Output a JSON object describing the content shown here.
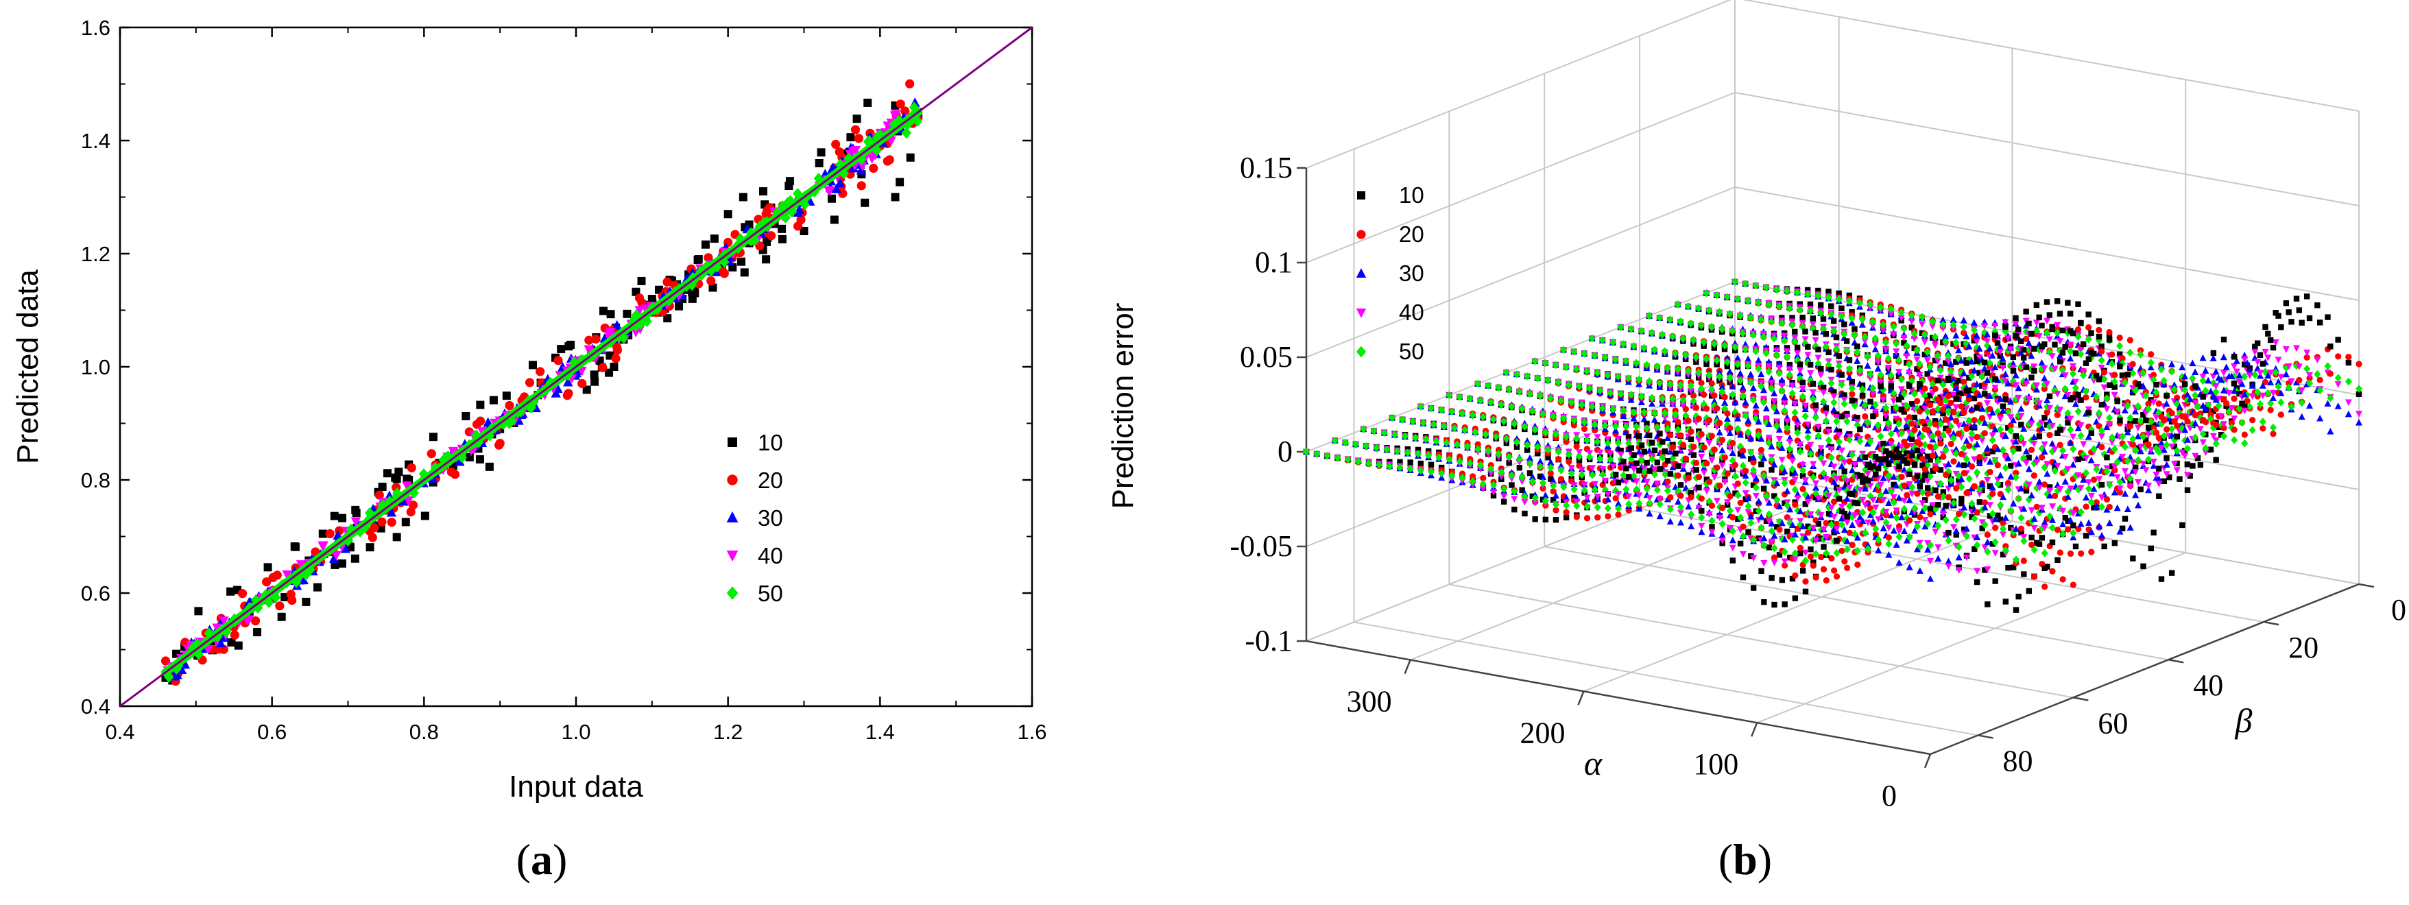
{
  "colors": {
    "s10": "#000000",
    "s20": "#ff0000",
    "s30": "#0000ff",
    "s40": "#ff00ff",
    "s50": "#00ee00",
    "diagonal": "#800080"
  },
  "panels": {
    "a": {
      "label_open": "(",
      "label_letter": "a",
      "label_close": ")"
    },
    "b": {
      "label_open": "(",
      "label_letter": "b",
      "label_close": ")"
    }
  },
  "chart_data": [
    {
      "id": "a",
      "type": "scatter",
      "title": "",
      "xlabel": "Input data",
      "ylabel": "Predicted data",
      "xlim": [
        0.4,
        1.6
      ],
      "ylim": [
        0.4,
        1.6
      ],
      "xticks": [
        "0.4",
        "0.6",
        "0.8",
        "1.0",
        "1.2",
        "1.4",
        "1.6"
      ],
      "yticks": [
        "0.4",
        "0.6",
        "0.8",
        "1.0",
        "1.2",
        "1.4",
        "1.6"
      ],
      "reference_line": {
        "from": [
          0.4,
          0.4
        ],
        "to": [
          1.6,
          1.6
        ]
      },
      "legend_position": "center-right",
      "series": [
        {
          "name": "10",
          "marker": "square",
          "points": [
            [
              0.46,
              0.45
            ],
            [
              0.52,
              0.51
            ],
            [
              0.6,
              0.59
            ],
            [
              0.7,
              0.69
            ],
            [
              0.78,
              0.8
            ],
            [
              0.82,
              0.83
            ],
            [
              0.86,
              0.84
            ],
            [
              0.9,
              0.89
            ],
            [
              0.95,
              0.95
            ],
            [
              1.0,
              0.99
            ],
            [
              1.02,
              1.03
            ],
            [
              1.05,
              1.0
            ],
            [
              1.1,
              1.12
            ],
            [
              1.14,
              1.12
            ],
            [
              1.18,
              1.14
            ],
            [
              1.2,
              1.27
            ],
            [
              1.22,
              1.3
            ],
            [
              1.25,
              1.19
            ],
            [
              1.28,
              1.32
            ],
            [
              1.3,
              1.24
            ],
            [
              1.32,
              1.36
            ],
            [
              1.34,
              1.26
            ],
            [
              1.36,
              1.38
            ],
            [
              1.38,
              1.29
            ],
            [
              1.4,
              1.4
            ],
            [
              1.42,
              1.3
            ],
            [
              1.44,
              1.37
            ],
            [
              1.45,
              1.45
            ]
          ]
        },
        {
          "name": "20",
          "marker": "circle",
          "points": [
            [
              0.46,
              0.48
            ],
            [
              0.55,
              0.54
            ],
            [
              0.65,
              0.65
            ],
            [
              0.76,
              0.75
            ],
            [
              0.84,
              0.85
            ],
            [
              0.92,
              0.91
            ],
            [
              1.0,
              1.01
            ],
            [
              1.08,
              1.08
            ],
            [
              1.12,
              1.15
            ],
            [
              1.2,
              1.22
            ],
            [
              1.25,
              1.27
            ],
            [
              1.3,
              1.29
            ],
            [
              1.35,
              1.37
            ],
            [
              1.4,
              1.39
            ],
            [
              1.45,
              1.44
            ]
          ]
        },
        {
          "name": "30",
          "marker": "triangle-up",
          "points": [
            [
              0.47,
              0.47
            ],
            [
              0.58,
              0.58
            ],
            [
              0.7,
              0.7
            ],
            [
              0.82,
              0.82
            ],
            [
              0.94,
              0.94
            ],
            [
              1.06,
              1.06
            ],
            [
              1.18,
              1.18
            ],
            [
              1.3,
              1.3
            ],
            [
              1.42,
              1.42
            ],
            [
              1.45,
              1.45
            ]
          ]
        },
        {
          "name": "40",
          "marker": "triangle-down",
          "points": [
            [
              0.48,
              0.48
            ],
            [
              0.6,
              0.6
            ],
            [
              0.72,
              0.72
            ],
            [
              0.84,
              0.84
            ],
            [
              0.96,
              0.96
            ],
            [
              1.08,
              1.08
            ],
            [
              1.2,
              1.2
            ],
            [
              1.32,
              1.32
            ],
            [
              1.44,
              1.44
            ]
          ]
        },
        {
          "name": "50",
          "marker": "diamond",
          "points": [
            [
              0.46,
              0.46
            ],
            [
              0.58,
              0.58
            ],
            [
              0.7,
              0.7
            ],
            [
              0.82,
              0.82
            ],
            [
              0.94,
              0.94
            ],
            [
              1.06,
              1.06
            ],
            [
              1.18,
              1.18
            ],
            [
              1.3,
              1.3
            ],
            [
              1.4,
              1.41
            ],
            [
              1.45,
              1.45
            ]
          ]
        }
      ]
    },
    {
      "id": "b",
      "type": "scatter3d",
      "title": "",
      "zlabel": "Prediction error",
      "xlabel": "α",
      "ylabel": "β",
      "alpha_range": [
        0,
        360
      ],
      "beta_range": [
        0,
        90
      ],
      "zlim": [
        -0.1,
        0.15
      ],
      "zticks": [
        "-0.1",
        "-0.05",
        "0",
        "0.05",
        "0.1",
        "0.15"
      ],
      "alpha_ticks": [
        "300",
        "200",
        "100",
        "0"
      ],
      "beta_ticks": [
        "0",
        "20",
        "40",
        "60",
        "80"
      ],
      "legend_position": "top-left",
      "series": [
        {
          "name": "10",
          "marker": "square",
          "amplitude": 0.06
        },
        {
          "name": "20",
          "marker": "circle",
          "amplitude": 0.045
        },
        {
          "name": "30",
          "marker": "triangle-up",
          "amplitude": 0.032
        },
        {
          "name": "40",
          "marker": "triangle-down",
          "amplitude": 0.025
        },
        {
          "name": "50",
          "marker": "diamond",
          "amplitude": 0.018
        }
      ]
    }
  ]
}
